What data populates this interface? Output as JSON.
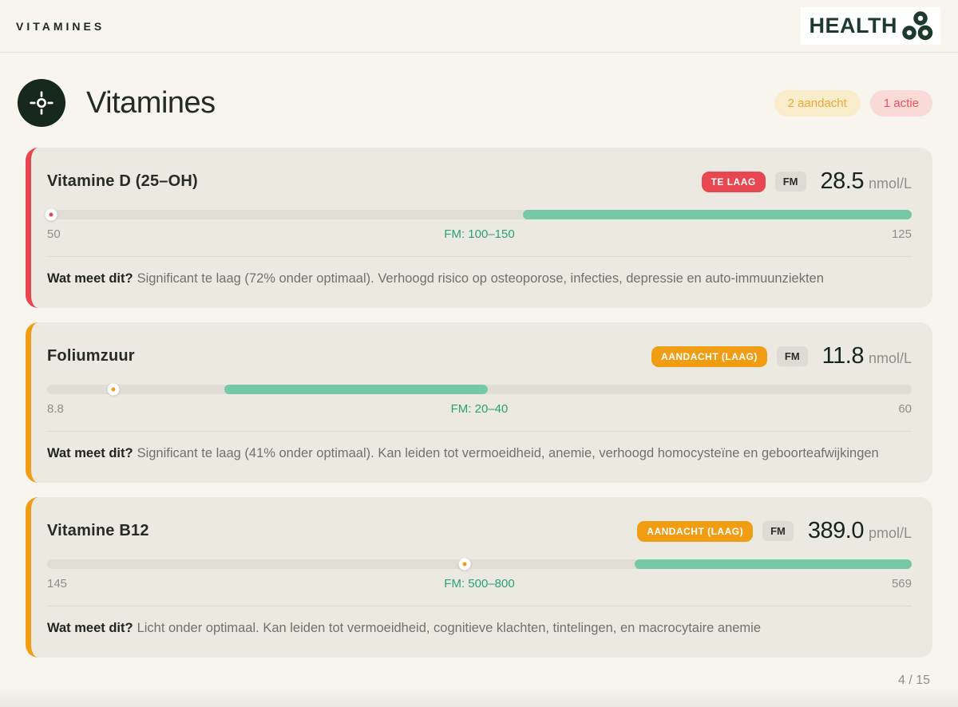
{
  "header": {
    "nav_label": "VITAMINES",
    "logo_text": "HEALTH"
  },
  "title_section": {
    "title": "Vitamines",
    "attention_badge": "2 aandacht",
    "action_badge": "1 actie"
  },
  "footer": {
    "page_indicator": "4 / 15"
  },
  "colors": {
    "accent_red": "#e84650",
    "accent_orange": "#f09d13",
    "range_green": "#77c9a5",
    "green_text": "#2ba173",
    "dark_green": "#16271e"
  },
  "cards": [
    {
      "name": "Vitamine D (25–OH)",
      "status": "TE LAAG",
      "accent_color": "#e84650",
      "source": "FM",
      "value": "28.5",
      "unit": "nmol/L",
      "scale_min": "50",
      "scale_max": "125",
      "optimal_range": "FM: 100–150",
      "marker_pct": 0.5,
      "range_start_pct": 55,
      "range_end_pct": 100,
      "question": "Wat meet dit?",
      "description": "Significant te laag (72% onder optimaal). Verhoogd risico op osteoporose, infecties, depressie en auto-immuunziekten"
    },
    {
      "name": "Foliumzuur",
      "status": "AANDACHT (LAAG)",
      "accent_color": "#f09d13",
      "source": "FM",
      "value": "11.8",
      "unit": "nmol/L",
      "scale_min": "8.8",
      "scale_max": "60",
      "optimal_range": "FM: 20–40",
      "marker_pct": 7.7,
      "range_start_pct": 20.5,
      "range_end_pct": 51,
      "question": "Wat meet dit?",
      "description": "Significant te laag (41% onder optimaal). Kan leiden tot vermoeidheid, anemie, verhoogd homocysteïne en geboorteafwijkingen"
    },
    {
      "name": "Vitamine B12",
      "status": "AANDACHT (LAAG)",
      "accent_color": "#f09d13",
      "source": "FM",
      "value": "389.0",
      "unit": "pmol/L",
      "scale_min": "145",
      "scale_max": "569",
      "optimal_range": "FM: 500–800",
      "marker_pct": 48.3,
      "range_start_pct": 68,
      "range_end_pct": 100,
      "question": "Wat meet dit?",
      "description": "Licht onder optimaal. Kan leiden tot vermoeidheid, cognitieve klachten, tintelingen, en macrocytaire anemie"
    }
  ]
}
